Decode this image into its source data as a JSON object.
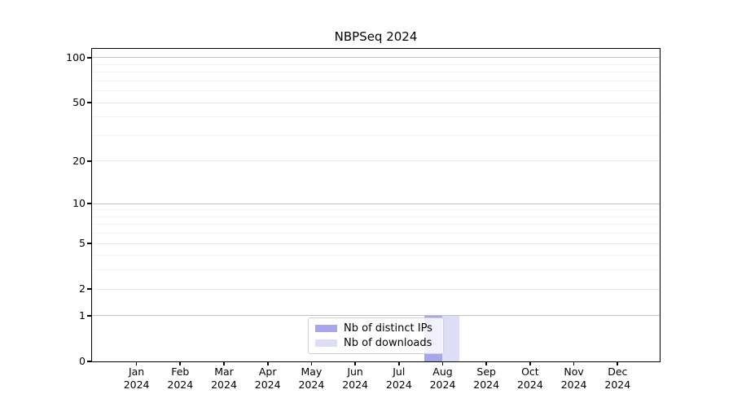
{
  "chart_data": {
    "type": "bar",
    "title": "NBPSeq 2024",
    "year_label": "2024",
    "categories": [
      "Jan",
      "Feb",
      "Mar",
      "Apr",
      "May",
      "Jun",
      "Jul",
      "Aug",
      "Sep",
      "Oct",
      "Nov",
      "Dec"
    ],
    "series": [
      {
        "name": "Nb of distinct IPs",
        "color": "#a6a6ec",
        "values": [
          0,
          0,
          0,
          0,
          0,
          0,
          0,
          1,
          0,
          0,
          0,
          0
        ]
      },
      {
        "name": "Nb of downloads",
        "color": "#ddddf8",
        "values": [
          0,
          0,
          0,
          0,
          0,
          0,
          0,
          1,
          0,
          0,
          0,
          0
        ]
      }
    ],
    "xlabel": "",
    "ylabel": "",
    "y_axis": {
      "scale": "log1p",
      "tick_labels": [
        0,
        1,
        2,
        5,
        10,
        20,
        50,
        100
      ],
      "ylim": [
        0,
        115
      ]
    },
    "grid": {
      "on": true,
      "major_values": [
        1,
        10,
        100
      ],
      "labeled_values": [
        2,
        5,
        20,
        50
      ],
      "minor_values": [
        3,
        4,
        6,
        7,
        8,
        9,
        30,
        40,
        60,
        70,
        80,
        90
      ]
    },
    "legend": {
      "position": "lower center",
      "entries": [
        "Nb of distinct IPs",
        "Nb of downloads"
      ]
    },
    "colors": {
      "grid_major": "#c3c3c3",
      "grid_labeled": "#e7e7e7",
      "grid_minor": "#f1f1f1",
      "spine": "#000000",
      "background": "#ffffff"
    }
  }
}
